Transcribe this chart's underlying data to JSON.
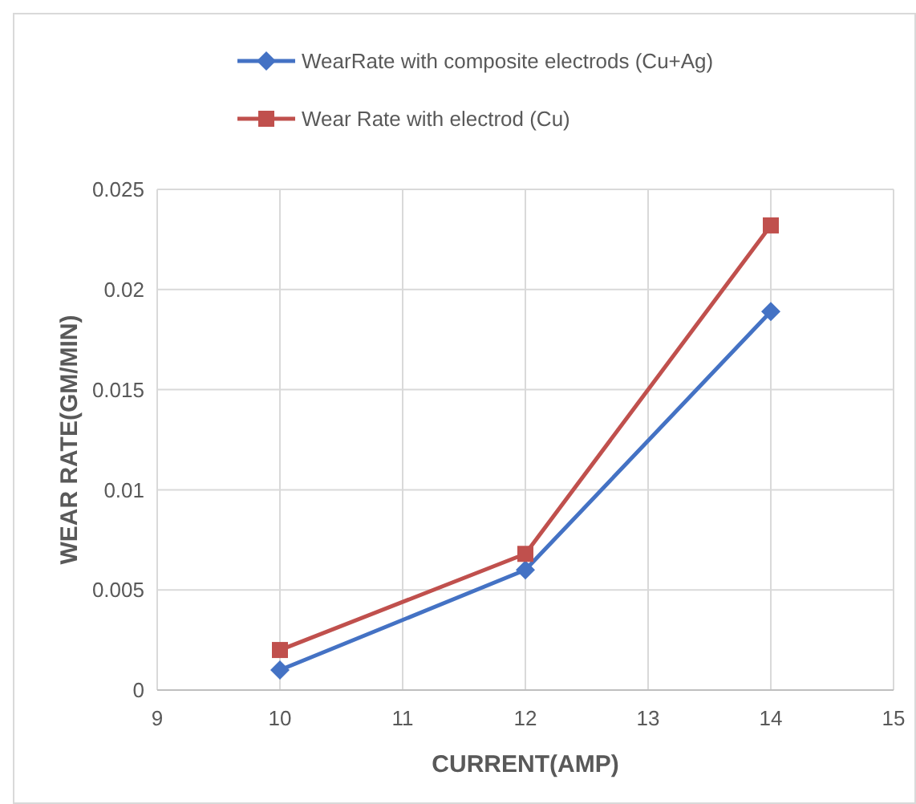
{
  "chart_data": {
    "type": "line",
    "xlabel": "CURRENT(AMP)",
    "ylabel": "WEAR RATE(GM/MIN)",
    "x": [
      10,
      12,
      14
    ],
    "series": [
      {
        "name": "WearRate with composite electrods (Cu+Ag)",
        "color": "#4472c4",
        "marker": "diamond",
        "values": [
          0.001,
          0.006,
          0.0189
        ]
      },
      {
        "name": "Wear Rate  with electrod (Cu)",
        "color": "#c0504d",
        "marker": "square",
        "values": [
          0.002,
          0.0068,
          0.0232
        ]
      }
    ],
    "xlim": [
      9,
      15
    ],
    "xticks": [
      9,
      10,
      11,
      12,
      13,
      14,
      15
    ],
    "ylim": [
      0,
      0.025
    ],
    "yticks": [
      0,
      0.005,
      0.01,
      0.015,
      0.02,
      0.025
    ],
    "grid": true,
    "legend": "top"
  }
}
